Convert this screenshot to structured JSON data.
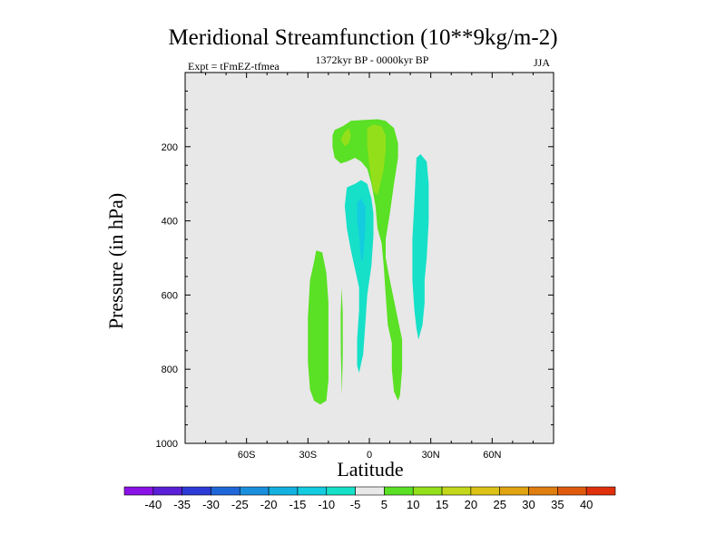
{
  "chart_data": {
    "type": "contour",
    "title": "Meridional Streamfunction (10**9kg/m-2)",
    "subtitle_left": "Expt = tFmEZ-tfmea",
    "subtitle_center": "1372kyr BP - 0000kyr BP",
    "subtitle_right": "JJA",
    "xlabel": "Latitude",
    "ylabel": "Pressure (in hPa)",
    "xlim": [
      -90,
      90
    ],
    "ylim": [
      1000,
      0
    ],
    "x_ticks": [
      {
        "value": -60,
        "label": "60S"
      },
      {
        "value": -30,
        "label": "30S"
      },
      {
        "value": 0,
        "label": "0"
      },
      {
        "value": 30,
        "label": "30N"
      },
      {
        "value": 60,
        "label": "60N"
      }
    ],
    "y_ticks": [
      {
        "value": 200,
        "label": "200"
      },
      {
        "value": 400,
        "label": "400"
      },
      {
        "value": 600,
        "label": "600"
      },
      {
        "value": 800,
        "label": "800"
      },
      {
        "value": 1000,
        "label": "1000"
      }
    ],
    "background_color": "#e8e8e8",
    "colorbar": {
      "labels": [
        "-40",
        "-35",
        "-30",
        "-25",
        "-20",
        "-15",
        "-10",
        "-5",
        "5",
        "10",
        "15",
        "20",
        "25",
        "30",
        "35",
        "40"
      ],
      "colors": [
        "#8a12e6",
        "#5a1fd6",
        "#2c3ad6",
        "#1f66d8",
        "#1a8fde",
        "#13b1e0",
        "#14cce0",
        "#16e0c8",
        "#e8e8e8",
        "#5ae024",
        "#93e01a",
        "#c3d81a",
        "#dcc216",
        "#e0a412",
        "#e07e10",
        "#e05a0e",
        "#e0300c"
      ]
    },
    "regions": [
      {
        "name": "pos-5-10-southern-lower",
        "level": "5 to 10",
        "color": "#5ae024",
        "points": [
          [
            -26,
            480
          ],
          [
            -23,
            485
          ],
          [
            -21,
            540
          ],
          [
            -20,
            620
          ],
          [
            -20,
            700
          ],
          [
            -20,
            760
          ],
          [
            -20,
            830
          ],
          [
            -21,
            885
          ],
          [
            -24,
            895
          ],
          [
            -27,
            885
          ],
          [
            -29,
            855
          ],
          [
            -30,
            780
          ],
          [
            -30,
            660
          ],
          [
            -29,
            560
          ],
          [
            -27,
            510
          ]
        ]
      },
      {
        "name": "pos-5-10-thin-sliver",
        "level": "5 to 10",
        "color": "#5ae024",
        "points": [
          [
            -13.5,
            580
          ],
          [
            -13,
            650
          ],
          [
            -13,
            760
          ],
          [
            -13.4,
            870
          ],
          [
            -13.9,
            760
          ],
          [
            -14,
            650
          ]
        ]
      },
      {
        "name": "pos-5-10-upper-east",
        "level": "5 to 10",
        "color": "#5ae024",
        "points": [
          [
            -17,
            155
          ],
          [
            -13,
            145
          ],
          [
            -9,
            130
          ],
          [
            -3,
            128
          ],
          [
            4,
            126
          ],
          [
            8,
            130
          ],
          [
            12,
            150
          ],
          [
            14,
            190
          ],
          [
            14,
            230
          ],
          [
            12,
            300
          ],
          [
            10,
            380
          ],
          [
            8,
            450
          ],
          [
            8,
            500
          ],
          [
            10,
            560
          ],
          [
            13,
            640
          ],
          [
            16,
            720
          ],
          [
            16,
            800
          ],
          [
            15,
            870
          ],
          [
            14,
            885
          ],
          [
            12,
            860
          ],
          [
            11,
            800
          ],
          [
            11,
            730
          ],
          [
            9,
            680
          ],
          [
            8,
            600
          ],
          [
            7,
            520
          ],
          [
            6,
            460
          ],
          [
            4,
            420
          ],
          [
            3,
            360
          ],
          [
            1,
            300
          ],
          [
            -1,
            260
          ],
          [
            -4,
            240
          ],
          [
            -7,
            230
          ],
          [
            -11,
            240
          ],
          [
            -14,
            245
          ],
          [
            -17,
            230
          ],
          [
            -18,
            200
          ],
          [
            -18,
            170
          ]
        ]
      },
      {
        "name": "pos-10-15-upper",
        "level": "10 to 15",
        "color": "#93e01a",
        "points": [
          [
            -1,
            150
          ],
          [
            2,
            140
          ],
          [
            6,
            145
          ],
          [
            8,
            170
          ],
          [
            8,
            210
          ],
          [
            7,
            260
          ],
          [
            5,
            310
          ],
          [
            4,
            330
          ],
          [
            2,
            320
          ],
          [
            1,
            290
          ],
          [
            0,
            250
          ],
          [
            -1,
            200
          ]
        ]
      },
      {
        "name": "pos-10-15-small",
        "level": "10 to 15",
        "color": "#93e01a",
        "points": [
          [
            -14,
            180
          ],
          [
            -12,
            160
          ],
          [
            -10,
            150
          ],
          [
            -9,
            170
          ],
          [
            -10,
            190
          ],
          [
            -12,
            200
          ]
        ]
      },
      {
        "name": "pos-10-15-side",
        "level": "10 to 15",
        "color": "#93e01a",
        "points": [
          [
            3,
            178
          ],
          [
            4.6,
            178
          ],
          [
            4.5,
            210
          ],
          [
            3.2,
            212
          ]
        ]
      },
      {
        "name": "neg-10-5-central",
        "level": "-10 to -5",
        "color": "#16e0c8",
        "points": [
          [
            -11,
            310
          ],
          [
            -7,
            300
          ],
          [
            -4,
            290
          ],
          [
            -1,
            300
          ],
          [
            1,
            340
          ],
          [
            2,
            380
          ],
          [
            2,
            440
          ],
          [
            1,
            520
          ],
          [
            -1,
            600
          ],
          [
            -2,
            680
          ],
          [
            -3,
            760
          ],
          [
            -5,
            810
          ],
          [
            -6,
            790
          ],
          [
            -6,
            720
          ],
          [
            -5,
            640
          ],
          [
            -5,
            580
          ],
          [
            -7,
            530
          ],
          [
            -9,
            480
          ],
          [
            -11,
            420
          ],
          [
            -12,
            360
          ]
        ]
      },
      {
        "name": "neg-15-10-core",
        "level": "-15 to -10",
        "color": "#14cce0",
        "points": [
          [
            -6,
            350
          ],
          [
            -4,
            340
          ],
          [
            -2,
            360
          ],
          [
            -2,
            420
          ],
          [
            -3,
            500
          ],
          [
            -4,
            510
          ],
          [
            -5,
            440
          ],
          [
            -6,
            400
          ]
        ]
      },
      {
        "name": "neg-10-5-east",
        "level": "-10 to -5",
        "color": "#16e0c8",
        "points": [
          [
            23,
            230
          ],
          [
            25,
            220
          ],
          [
            28,
            240
          ],
          [
            29,
            300
          ],
          [
            29,
            400
          ],
          [
            28,
            500
          ],
          [
            27,
            560
          ],
          [
            27,
            620
          ],
          [
            26,
            680
          ],
          [
            24,
            720
          ],
          [
            23,
            690
          ],
          [
            22,
            640
          ],
          [
            21,
            560
          ],
          [
            21,
            450
          ],
          [
            22,
            350
          ]
        ]
      }
    ]
  }
}
